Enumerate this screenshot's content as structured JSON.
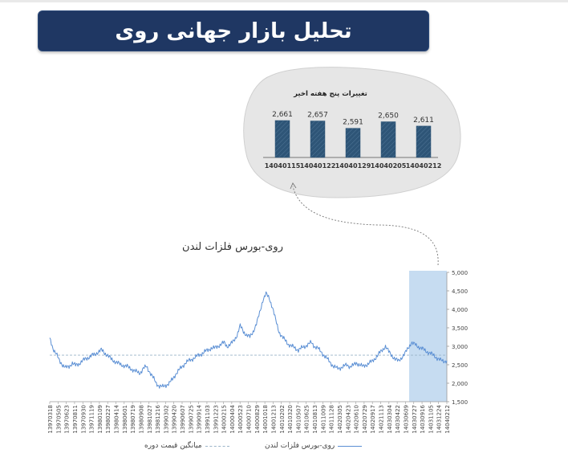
{
  "page": {
    "title": "تحلیل بازار جهانی روی"
  },
  "chart_data": [
    {
      "type": "bar",
      "title": "تغییرات پنج هفته اخیر",
      "categories": [
        "14040115",
        "14040122",
        "14040129",
        "14040205",
        "14040212"
      ],
      "values": [
        2661,
        2657,
        2591,
        2650,
        2611
      ],
      "value_labels": [
        "2,661",
        "2,657",
        "2,591",
        "2,650",
        "2,611"
      ],
      "colors": {
        "bar": "#2e5577",
        "stripe": "#4f7596",
        "bubble": "#e6e6e6"
      }
    },
    {
      "type": "line",
      "title": "روی-بورس فلزات لندن",
      "ylim": [
        1500,
        5000
      ],
      "yticks": [
        "1,500",
        "2,000",
        "2,500",
        "3,000",
        "3,500",
        "4,000",
        "4,500",
        "5,000"
      ],
      "xticks": [
        "13970318",
        "13970505",
        "13970623",
        "13970811",
        "13970930",
        "13971119",
        "13980109",
        "13980227",
        "13980414",
        "13980601",
        "13980719",
        "13980908",
        "13981027",
        "13981216",
        "13990302",
        "13990420",
        "13990607",
        "13990725",
        "13990914",
        "13991103",
        "13991223",
        "14000215",
        "14000404",
        "14000523",
        "14000710",
        "14000829",
        "14001018",
        "14001213",
        "14010202",
        "14010320",
        "14010507",
        "14010625",
        "14010813",
        "14011009",
        "14011128",
        "14020305",
        "14020423",
        "14020610",
        "14020729",
        "14020917",
        "14021113",
        "14030304",
        "14030422",
        "14030609",
        "14030727",
        "14030916",
        "14031105",
        "14031224",
        "14040212"
      ],
      "series": [
        {
          "name": "روی-بورس فلزات لندن",
          "color": "#5b8fd4",
          "values": [
            3200,
            2950,
            2800,
            2600,
            2500,
            2420,
            2450,
            2550,
            2480,
            2520,
            2600,
            2650,
            2700,
            2750,
            2780,
            2850,
            2900,
            2820,
            2750,
            2650,
            2600,
            2550,
            2500,
            2480,
            2450,
            2400,
            2350,
            2300,
            2280,
            2400,
            2450,
            2300,
            2150,
            2000,
            1920,
            1900,
            1950,
            2000,
            2100,
            2250,
            2350,
            2450,
            2550,
            2600,
            2650,
            2700,
            2750,
            2800,
            2850,
            2900,
            2950,
            2950,
            3000,
            3050,
            3100,
            3000,
            3050,
            3150,
            3300,
            3550,
            3400,
            3300,
            3250,
            3400,
            3600,
            3900,
            4250,
            4420,
            4300,
            4050,
            3700,
            3400,
            3250,
            3150,
            3050,
            3000,
            2950,
            2900,
            2950,
            3000,
            3050,
            3100,
            3000,
            2950,
            2850,
            2750,
            2650,
            2550,
            2450,
            2400,
            2420,
            2450,
            2500,
            2450,
            2480,
            2550,
            2500,
            2450,
            2500,
            2550,
            2600,
            2700,
            2800,
            2900,
            3000,
            2850,
            2750,
            2650,
            2600,
            2700,
            2800,
            2950,
            3100,
            3050,
            3000,
            2950,
            2900,
            2850,
            2800,
            2750,
            2680,
            2620,
            2600,
            2611
          ]
        },
        {
          "name": "میانگین قیمت دوره",
          "color": "#9bb4c9",
          "values": [
            2760,
            2760
          ]
        }
      ],
      "highlight_color": "#c6dcf1",
      "legend": {
        "position": "bottom",
        "items": [
          "روی-بورس فلزات لندن",
          "میانگین قیمت دوره"
        ]
      }
    }
  ]
}
